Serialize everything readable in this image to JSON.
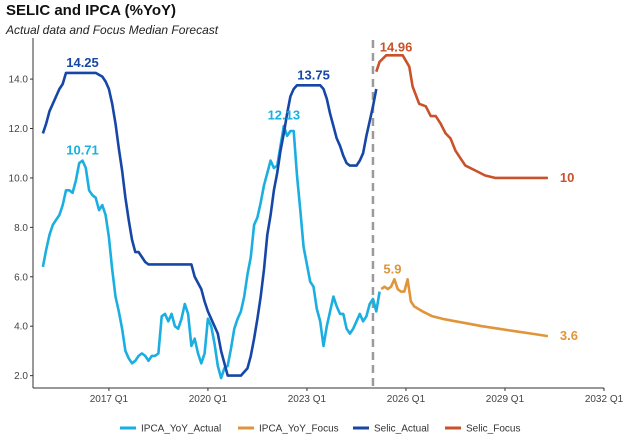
{
  "chart_data": {
    "type": "line",
    "title": "SELIC and IPCA (%YoY)",
    "subtitle": "Actual data and Focus Median Forecast",
    "xlabel": "",
    "ylabel": "",
    "xlim": [
      2014.7,
      2032.0
    ],
    "ylim": [
      1.5,
      15.5
    ],
    "y_ticks": [
      2.0,
      4.0,
      6.0,
      8.0,
      10.0,
      12.0,
      14.0
    ],
    "y_tick_labels": [
      "2.0",
      "4.0",
      "6.0",
      "8.0",
      "10.0",
      "12.0",
      "14.0"
    ],
    "x_ticks": [
      2017.0,
      2020.0,
      2023.0,
      2026.0,
      2029.0,
      2032.0
    ],
    "x_tick_labels": [
      "2017 Q1",
      "2020 Q1",
      "2023 Q1",
      "2026 Q1",
      "2029 Q1",
      "2032 Q1"
    ],
    "forecast_start": 2025.0,
    "grid": false,
    "legend_position": "bottom",
    "series": [
      {
        "name": "IPCA_YoY_Actual",
        "color": "#1aafe0",
        "points": [
          [
            2015.0,
            6.4
          ],
          [
            2015.1,
            7.1
          ],
          [
            2015.2,
            7.7
          ],
          [
            2015.3,
            8.1
          ],
          [
            2015.4,
            8.3
          ],
          [
            2015.5,
            8.5
          ],
          [
            2015.6,
            8.9
          ],
          [
            2015.7,
            9.5
          ],
          [
            2015.8,
            9.5
          ],
          [
            2015.9,
            9.4
          ],
          [
            2016.0,
            9.9
          ],
          [
            2016.1,
            10.6
          ],
          [
            2016.2,
            10.7
          ],
          [
            2016.3,
            10.4
          ],
          [
            2016.4,
            9.5
          ],
          [
            2016.5,
            9.3
          ],
          [
            2016.6,
            9.2
          ],
          [
            2016.7,
            8.7
          ],
          [
            2016.8,
            8.9
          ],
          [
            2016.9,
            8.5
          ],
          [
            2017.0,
            7.6
          ],
          [
            2017.1,
            6.3
          ],
          [
            2017.2,
            5.2
          ],
          [
            2017.3,
            4.6
          ],
          [
            2017.4,
            3.9
          ],
          [
            2017.5,
            3.0
          ],
          [
            2017.6,
            2.7
          ],
          [
            2017.7,
            2.5
          ],
          [
            2017.8,
            2.6
          ],
          [
            2017.9,
            2.8
          ],
          [
            2018.0,
            2.9
          ],
          [
            2018.1,
            2.8
          ],
          [
            2018.2,
            2.6
          ],
          [
            2018.3,
            2.8
          ],
          [
            2018.4,
            2.8
          ],
          [
            2018.5,
            2.9
          ],
          [
            2018.6,
            4.4
          ],
          [
            2018.7,
            4.5
          ],
          [
            2018.8,
            4.2
          ],
          [
            2018.9,
            4.5
          ],
          [
            2019.0,
            4.0
          ],
          [
            2019.1,
            3.9
          ],
          [
            2019.2,
            4.3
          ],
          [
            2019.3,
            4.9
          ],
          [
            2019.4,
            4.5
          ],
          [
            2019.5,
            3.2
          ],
          [
            2019.6,
            3.5
          ],
          [
            2019.7,
            2.9
          ],
          [
            2019.8,
            2.5
          ],
          [
            2019.9,
            2.9
          ],
          [
            2020.0,
            4.3
          ],
          [
            2020.1,
            4.0
          ],
          [
            2020.2,
            3.3
          ],
          [
            2020.3,
            2.4
          ],
          [
            2020.4,
            1.9
          ],
          [
            2020.5,
            2.3
          ],
          [
            2020.6,
            2.4
          ],
          [
            2020.7,
            3.1
          ],
          [
            2020.8,
            3.9
          ],
          [
            2020.9,
            4.3
          ],
          [
            2021.0,
            4.6
          ],
          [
            2021.1,
            5.2
          ],
          [
            2021.2,
            6.1
          ],
          [
            2021.3,
            6.8
          ],
          [
            2021.4,
            8.1
          ],
          [
            2021.5,
            8.4
          ],
          [
            2021.6,
            9.0
          ],
          [
            2021.7,
            9.7
          ],
          [
            2021.8,
            10.2
          ],
          [
            2021.9,
            10.7
          ],
          [
            2022.0,
            10.4
          ],
          [
            2022.1,
            10.5
          ],
          [
            2022.2,
            11.3
          ],
          [
            2022.3,
            12.1
          ],
          [
            2022.4,
            11.7
          ],
          [
            2022.5,
            11.9
          ],
          [
            2022.6,
            11.9
          ],
          [
            2022.7,
            10.1
          ],
          [
            2022.8,
            8.7
          ],
          [
            2022.9,
            7.2
          ],
          [
            2023.0,
            6.5
          ],
          [
            2023.1,
            5.8
          ],
          [
            2023.2,
            5.6
          ],
          [
            2023.3,
            4.7
          ],
          [
            2023.4,
            4.2
          ],
          [
            2023.5,
            3.2
          ],
          [
            2023.6,
            4.0
          ],
          [
            2023.7,
            4.6
          ],
          [
            2023.8,
            5.2
          ],
          [
            2023.9,
            4.8
          ],
          [
            2024.0,
            4.5
          ],
          [
            2024.1,
            4.5
          ],
          [
            2024.2,
            3.9
          ],
          [
            2024.3,
            3.7
          ],
          [
            2024.4,
            3.9
          ],
          [
            2024.5,
            4.2
          ],
          [
            2024.6,
            4.5
          ],
          [
            2024.7,
            4.2
          ],
          [
            2024.8,
            4.4
          ],
          [
            2024.9,
            4.9
          ],
          [
            2025.0,
            5.1
          ],
          [
            2025.1,
            4.6
          ],
          [
            2025.2,
            5.4
          ]
        ]
      },
      {
        "name": "IPCA_YoY_Focus",
        "color": "#e0953a",
        "points": [
          [
            2025.25,
            5.5
          ],
          [
            2025.35,
            5.6
          ],
          [
            2025.45,
            5.5
          ],
          [
            2025.55,
            5.6
          ],
          [
            2025.65,
            5.9
          ],
          [
            2025.75,
            5.5
          ],
          [
            2025.85,
            5.4
          ],
          [
            2025.95,
            5.4
          ],
          [
            2026.05,
            5.9
          ],
          [
            2026.15,
            5.0
          ],
          [
            2026.25,
            4.8
          ],
          [
            2026.5,
            4.6
          ],
          [
            2026.8,
            4.4
          ],
          [
            2027.1,
            4.3
          ],
          [
            2027.5,
            4.2
          ],
          [
            2027.9,
            4.1
          ],
          [
            2028.3,
            4.0
          ],
          [
            2028.8,
            3.9
          ],
          [
            2029.3,
            3.8
          ],
          [
            2029.8,
            3.7
          ],
          [
            2030.3,
            3.6
          ]
        ]
      },
      {
        "name": "Selic_Actual",
        "color": "#1747a6",
        "points": [
          [
            2015.0,
            11.8
          ],
          [
            2015.1,
            12.2
          ],
          [
            2015.2,
            12.7
          ],
          [
            2015.3,
            13.0
          ],
          [
            2015.4,
            13.3
          ],
          [
            2015.5,
            13.6
          ],
          [
            2015.6,
            13.8
          ],
          [
            2015.7,
            14.25
          ],
          [
            2016.0,
            14.25
          ],
          [
            2016.3,
            14.25
          ],
          [
            2016.6,
            14.25
          ],
          [
            2016.8,
            14.1
          ],
          [
            2016.9,
            13.9
          ],
          [
            2017.0,
            13.6
          ],
          [
            2017.1,
            13.0
          ],
          [
            2017.2,
            12.2
          ],
          [
            2017.3,
            11.2
          ],
          [
            2017.4,
            10.3
          ],
          [
            2017.5,
            9.2
          ],
          [
            2017.6,
            8.3
          ],
          [
            2017.7,
            7.5
          ],
          [
            2017.8,
            7.0
          ],
          [
            2017.9,
            7.0
          ],
          [
            2018.0,
            6.8
          ],
          [
            2018.1,
            6.6
          ],
          [
            2018.2,
            6.5
          ],
          [
            2018.5,
            6.5
          ],
          [
            2019.0,
            6.5
          ],
          [
            2019.5,
            6.5
          ],
          [
            2019.6,
            6.0
          ],
          [
            2019.8,
            5.5
          ],
          [
            2019.9,
            5.0
          ],
          [
            2020.0,
            4.6
          ],
          [
            2020.1,
            4.3
          ],
          [
            2020.2,
            4.0
          ],
          [
            2020.3,
            3.7
          ],
          [
            2020.4,
            3.0
          ],
          [
            2020.5,
            2.5
          ],
          [
            2020.6,
            2.0
          ],
          [
            2020.8,
            2.0
          ],
          [
            2021.0,
            2.0
          ],
          [
            2021.2,
            2.3
          ],
          [
            2021.3,
            2.8
          ],
          [
            2021.4,
            3.5
          ],
          [
            2021.5,
            4.3
          ],
          [
            2021.6,
            5.2
          ],
          [
            2021.7,
            6.3
          ],
          [
            2021.8,
            7.7
          ],
          [
            2021.9,
            8.5
          ],
          [
            2022.0,
            9.5
          ],
          [
            2022.1,
            10.2
          ],
          [
            2022.2,
            11.1
          ],
          [
            2022.3,
            11.8
          ],
          [
            2022.4,
            12.6
          ],
          [
            2022.5,
            13.3
          ],
          [
            2022.6,
            13.6
          ],
          [
            2022.7,
            13.75
          ],
          [
            2023.0,
            13.75
          ],
          [
            2023.4,
            13.75
          ],
          [
            2023.5,
            13.6
          ],
          [
            2023.6,
            13.2
          ],
          [
            2023.7,
            12.6
          ],
          [
            2023.8,
            12.1
          ],
          [
            2023.9,
            11.6
          ],
          [
            2024.0,
            11.3
          ],
          [
            2024.1,
            10.9
          ],
          [
            2024.2,
            10.6
          ],
          [
            2024.3,
            10.5
          ],
          [
            2024.5,
            10.5
          ],
          [
            2024.6,
            10.7
          ],
          [
            2024.7,
            11.0
          ],
          [
            2024.8,
            11.7
          ],
          [
            2024.9,
            12.3
          ],
          [
            2025.0,
            12.9
          ],
          [
            2025.1,
            13.6
          ]
        ]
      },
      {
        "name": "Selic_Focus",
        "color": "#c9522b",
        "points": [
          [
            2025.1,
            14.3
          ],
          [
            2025.2,
            14.7
          ],
          [
            2025.4,
            14.96
          ],
          [
            2025.9,
            14.96
          ],
          [
            2026.1,
            14.5
          ],
          [
            2026.2,
            13.7
          ],
          [
            2026.4,
            13.0
          ],
          [
            2026.6,
            12.9
          ],
          [
            2026.75,
            12.5
          ],
          [
            2026.9,
            12.5
          ],
          [
            2027.05,
            12.2
          ],
          [
            2027.2,
            11.8
          ],
          [
            2027.35,
            11.6
          ],
          [
            2027.5,
            11.1
          ],
          [
            2027.65,
            10.8
          ],
          [
            2027.8,
            10.5
          ],
          [
            2028.1,
            10.3
          ],
          [
            2028.4,
            10.1
          ],
          [
            2028.7,
            10.0
          ],
          [
            2029.2,
            10.0
          ],
          [
            2029.6,
            10.0
          ],
          [
            2030.3,
            10.0
          ]
        ]
      }
    ],
    "annotations": [
      {
        "text": "14.25",
        "x": 2016.2,
        "y": 14.25,
        "series": "Selic_Actual"
      },
      {
        "text": "10.71",
        "x": 2016.2,
        "y": 10.71,
        "series": "IPCA_YoY_Actual"
      },
      {
        "text": "12.13",
        "x": 2022.3,
        "y": 12.13,
        "series": "IPCA_YoY_Actual"
      },
      {
        "text": "13.75",
        "x": 2023.2,
        "y": 13.75,
        "series": "Selic_Actual"
      },
      {
        "text": "14.96",
        "x": 2025.7,
        "y": 14.96,
        "series": "Selic_Focus"
      },
      {
        "text": "5.9",
        "x": 2025.65,
        "y": 5.9,
        "series": "IPCA_YoY_Focus"
      },
      {
        "text": "10",
        "x": 2030.3,
        "y": 10.0,
        "series": "Selic_Focus"
      },
      {
        "text": "3.6",
        "x": 2030.3,
        "y": 3.6,
        "series": "IPCA_YoY_Focus"
      }
    ]
  }
}
